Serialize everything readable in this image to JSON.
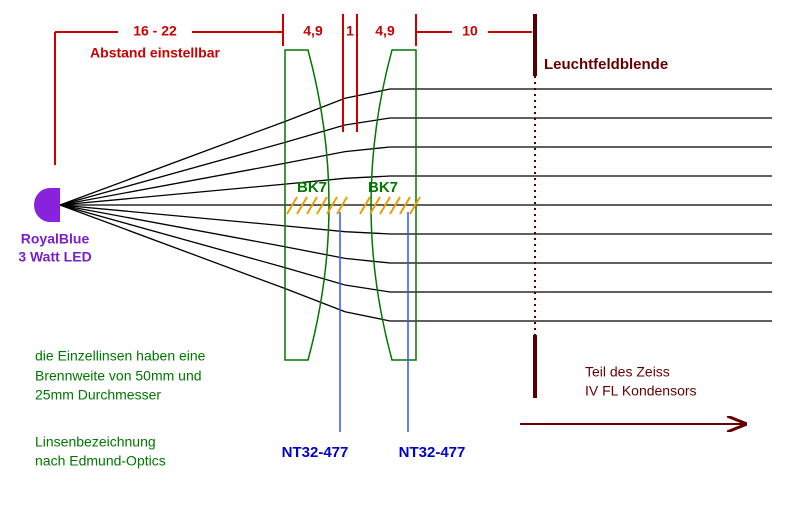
{
  "dimensions": [
    "16 - 22",
    "4,9",
    "1",
    "4,9",
    "10"
  ],
  "adjustable": "Abstand einstellbar",
  "field_stop": "Leuchtfeldblende",
  "lenses": [
    {
      "material": "BK7",
      "part": "NT32-477"
    },
    {
      "material": "BK7",
      "part": "NT32-477"
    }
  ],
  "led": [
    "RoyalBlue",
    "3 Watt LED"
  ],
  "lens_note": [
    "die Einzellinsen haben eine",
    "Brennweite von 50mm und",
    "25mm Durchmesser"
  ],
  "naming_note": [
    "Linsenbezeichnung",
    "nach Edmund-Optics"
  ],
  "condenser_note": [
    "Teil des Zeiss",
    "IV FL Kondensors"
  ]
}
